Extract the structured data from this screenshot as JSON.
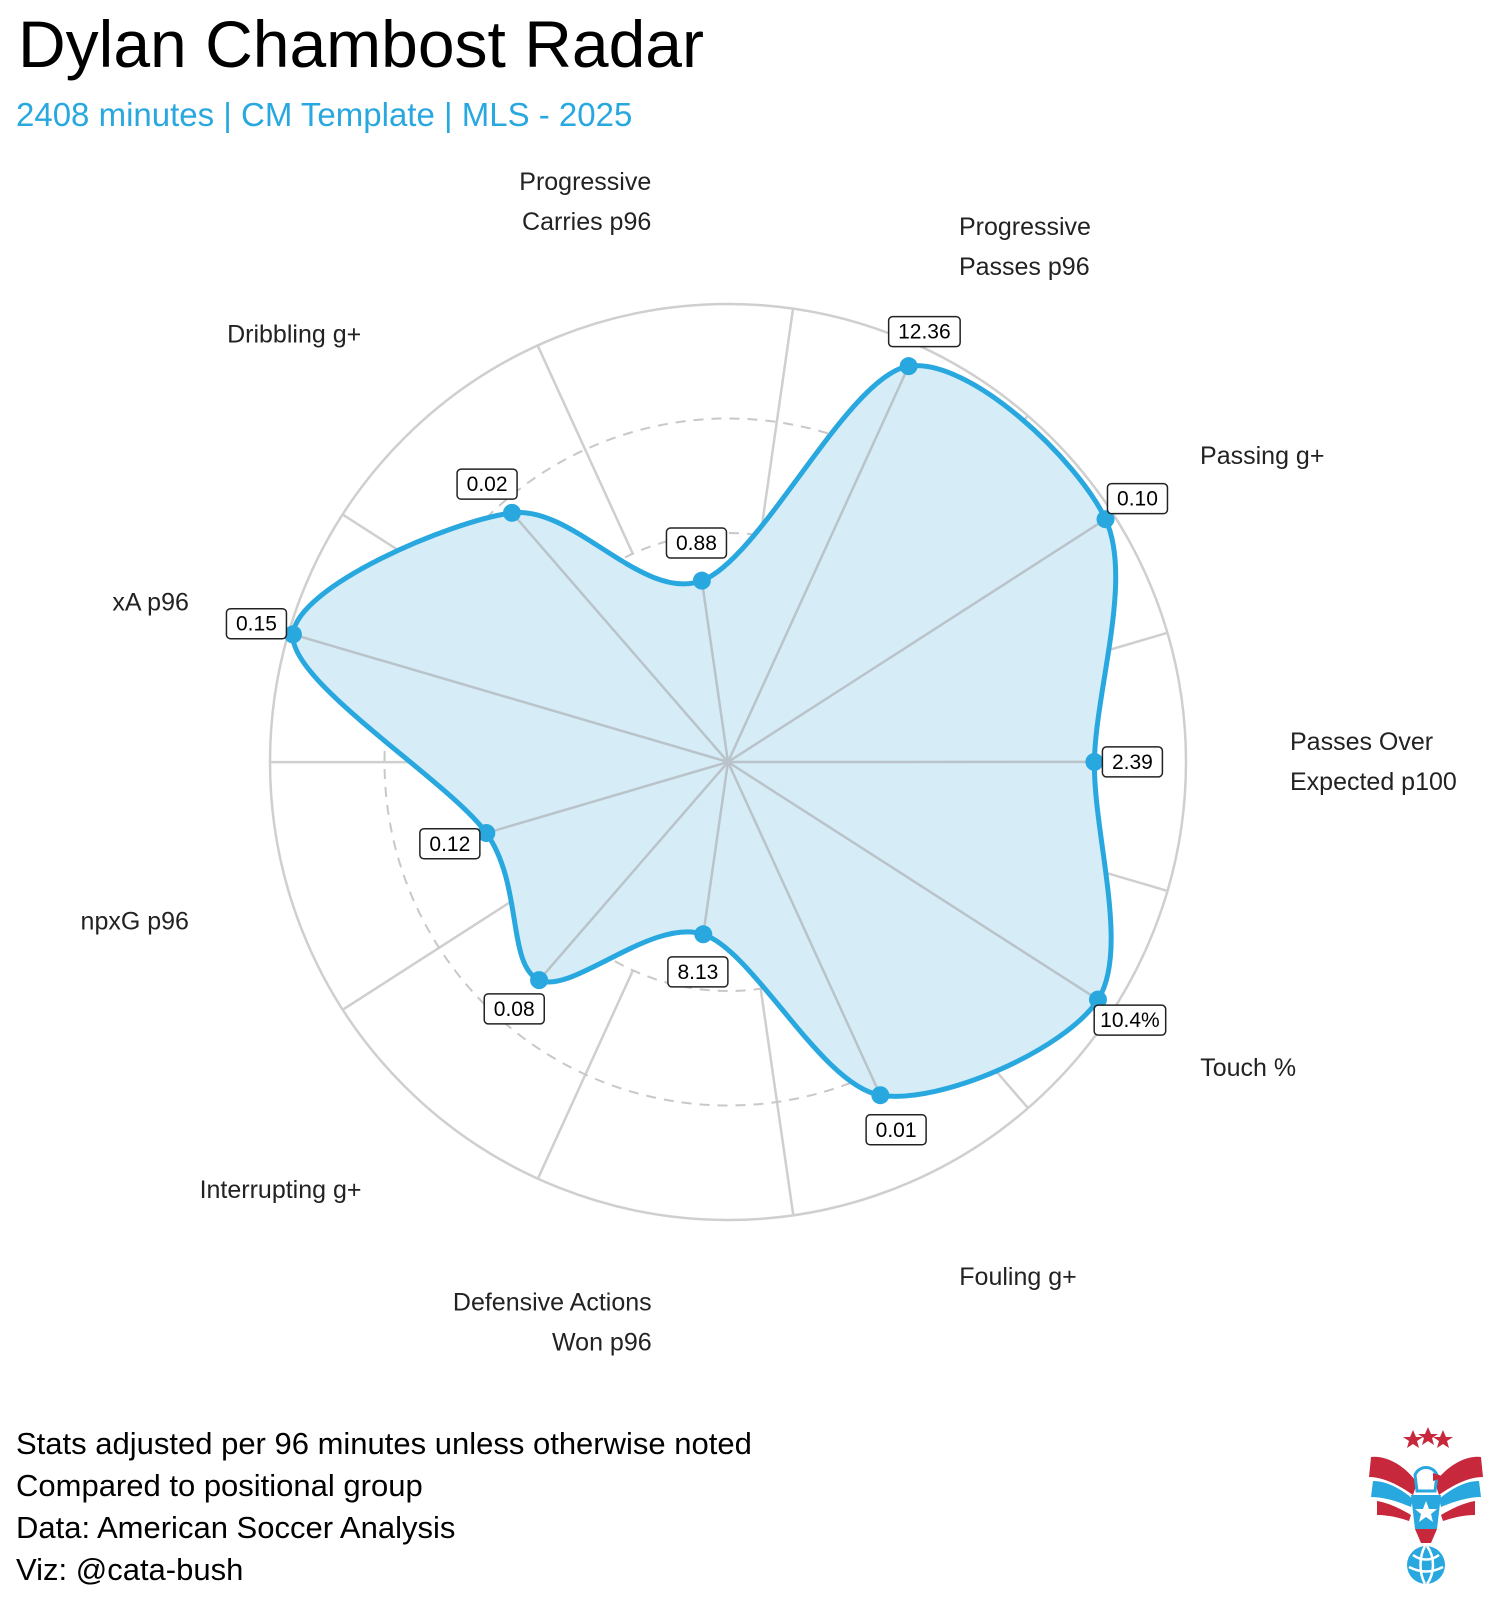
{
  "header": {
    "title": "Dylan Chambost Radar",
    "subtitle": "2408 minutes | CM Template | MLS - 2025"
  },
  "chart_data": {
    "type": "radar",
    "title": "Dylan Chambost Radar",
    "subtitle": "2408 minutes | CM Template | MLS - 2025",
    "scale": "percentile rank within positional group (0-1)",
    "grid_rings": [
      0.25,
      0.5,
      0.75,
      1.0
    ],
    "color": "#29a8e0",
    "fill": "#d6edf8",
    "axes": [
      {
        "label": [
          "Progressive",
          "Carries p96"
        ],
        "value_label": "0.88",
        "rank": 0.4
      },
      {
        "label": [
          "Progressive",
          "Passes p96"
        ],
        "value_label": "12.36",
        "rank": 0.95
      },
      {
        "label": [
          "Passing g+"
        ],
        "value_label": "0.10",
        "rank": 0.98
      },
      {
        "label": [
          "Passes Over",
          "Expected p100"
        ],
        "value_label": "2.39",
        "rank": 0.8
      },
      {
        "label": [
          "Touch %"
        ],
        "value_label": "10.4%",
        "rank": 0.96
      },
      {
        "label": [
          "Fouling g+"
        ],
        "value_label": "0.01",
        "rank": 0.8
      },
      {
        "label": [
          "Defensive Actions",
          "Won p96"
        ],
        "value_label": "8.13",
        "rank": 0.38
      },
      {
        "label": [
          "Interrupting g+"
        ],
        "value_label": "0.08",
        "rank": 0.63
      },
      {
        "label": [
          "npxG p96"
        ],
        "value_label": "0.12",
        "rank": 0.55
      },
      {
        "label": [
          "xA p96"
        ],
        "value_label": "0.15",
        "rank": 0.99
      },
      {
        "label": [
          "Dribbling g+"
        ],
        "value_label": "0.02",
        "rank": 0.72
      }
    ]
  },
  "caption": {
    "lines": [
      "Stats adjusted per 96 minutes unless otherwise noted",
      "Compared to positional group",
      "Data: American Soccer Analysis",
      "Viz: @cata-bush"
    ]
  }
}
